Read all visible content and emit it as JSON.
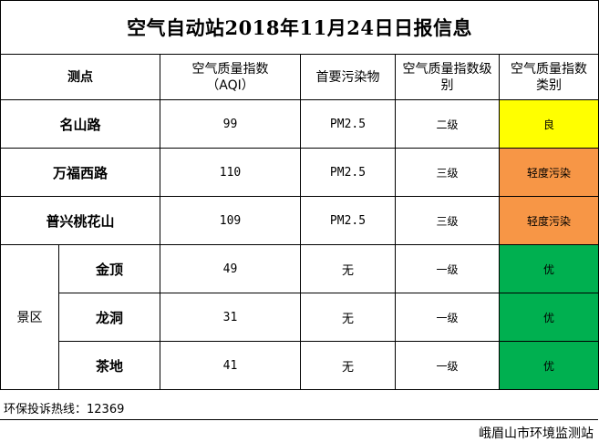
{
  "title": "空气自动站2018年11月24日日报信息",
  "headers": {
    "site": "测点",
    "aqi": "空气质量指数",
    "aqi_sub": "（AQI）",
    "pollutant": "首要污染物",
    "level": "空气质量指数级别",
    "category": "空气质量指数类别"
  },
  "rows": [
    {
      "site": "名山路",
      "aqi": "99",
      "pollutant": "PM2.5",
      "level": "二级",
      "category": "良",
      "color": "#ffff00"
    },
    {
      "site": "万福西路",
      "aqi": "110",
      "pollutant": "PM2.5",
      "level": "三级",
      "category": "轻度污染",
      "color": "#f79646"
    },
    {
      "site": "普兴桃花山",
      "aqi": "109",
      "pollutant": "PM2.5",
      "level": "三级",
      "category": "轻度污染",
      "color": "#f79646"
    }
  ],
  "scenic": {
    "label": "景区",
    "rows": [
      {
        "site": "金顶",
        "aqi": "49",
        "pollutant": "无",
        "level": "一级",
        "category": "优",
        "color": "#00b050"
      },
      {
        "site": "龙洞",
        "aqi": "31",
        "pollutant": "无",
        "level": "一级",
        "category": "优",
        "color": "#00b050"
      },
      {
        "site": "茶地",
        "aqi": "41",
        "pollutant": "无",
        "level": "一级",
        "category": "优",
        "color": "#00b050"
      }
    ]
  },
  "footer": {
    "hotline": "环保投诉热线：12369",
    "org": "峨眉山市环境监测站"
  }
}
